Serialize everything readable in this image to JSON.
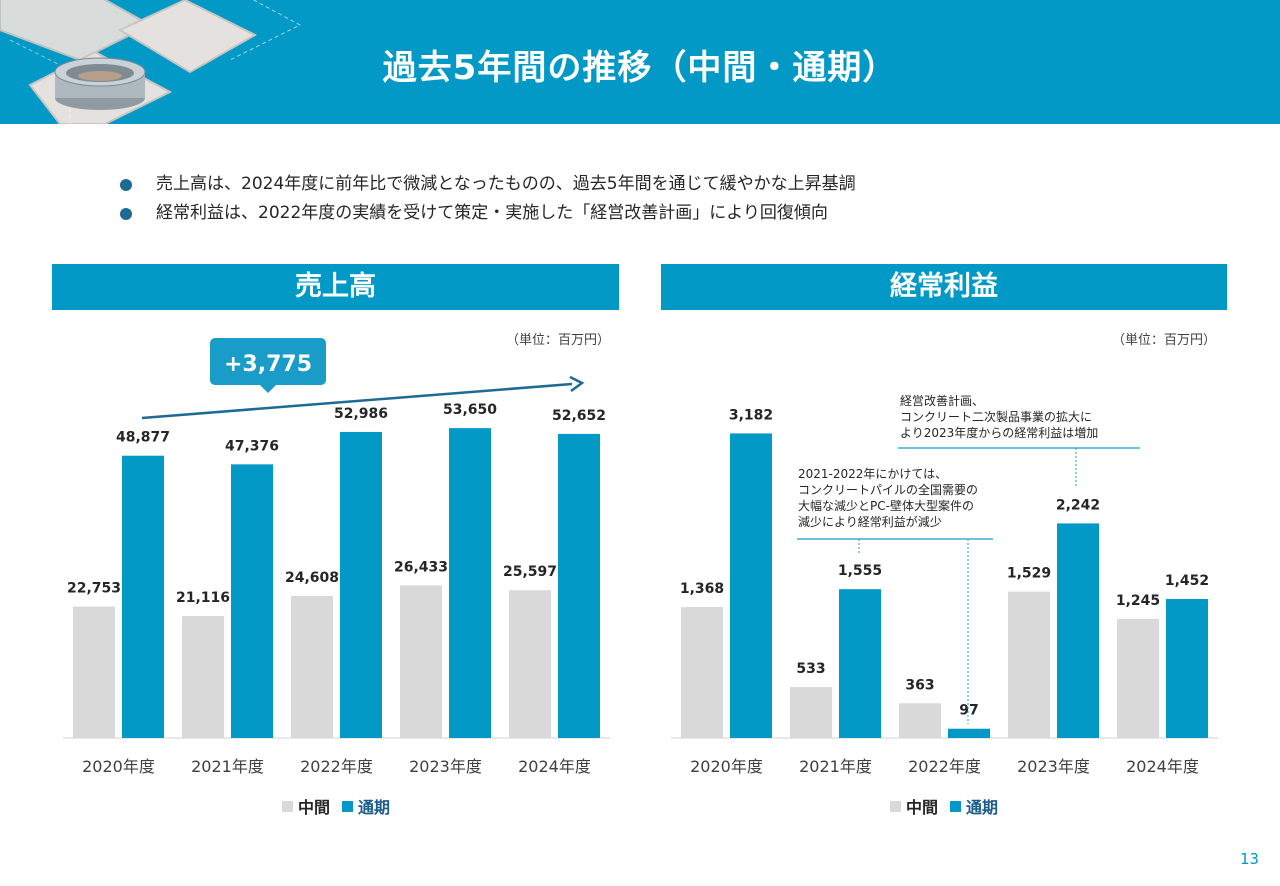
{
  "page": {
    "title": "過去5年間の推移（中間・通期）",
    "bullets": [
      "売上高は、2024年度に前年比で微減となったものの、過去5年間を通じて緩やかな上昇基調",
      "経常利益は、2022年度の実績を受けて策定・実施した「経営改善計画」により回復傾向"
    ],
    "page_number": "13",
    "unit_label": "（単位：百万円）",
    "legend": {
      "interim": "中間",
      "full": "通期"
    },
    "colors": {
      "header": "#0299c6",
      "full_bar": "#0299c6",
      "interim_bar": "#d9d9d9",
      "bullet": "#1d6b94",
      "callout": "#1a9cc8",
      "trend_arrow": "#1d6b94"
    }
  },
  "chart_data": [
    {
      "type": "bar",
      "title": "売上高",
      "unit": "（単位：百万円）",
      "categories": [
        "2020年度",
        "2021年度",
        "2022年度",
        "2023年度",
        "2024年度"
      ],
      "series": [
        {
          "name": "中間",
          "values": [
            22753,
            21116,
            24608,
            26433,
            25597
          ]
        },
        {
          "name": "通期",
          "values": [
            48877,
            47376,
            52986,
            53650,
            52652
          ]
        }
      ],
      "value_labels": {
        "中間": [
          "22,753",
          "21,116",
          "24,608",
          "26,433",
          "25,597"
        ],
        "通期": [
          "48,877",
          "47,376",
          "52,986",
          "53,650",
          "52,652"
        ]
      },
      "ylim": [
        0,
        58000
      ],
      "grid": false,
      "legend_position": "bottom",
      "annotations": [
        {
          "type": "trend-arrow",
          "text": "+3,775"
        }
      ]
    },
    {
      "type": "bar",
      "title": "経常利益",
      "unit": "（単位：百万円）",
      "categories": [
        "2020年度",
        "2021年度",
        "2022年度",
        "2023年度",
        "2024年度"
      ],
      "series": [
        {
          "name": "中間",
          "values": [
            1368,
            533,
            363,
            1529,
            1245
          ]
        },
        {
          "name": "通期",
          "values": [
            3182,
            1555,
            97,
            2242,
            1452
          ]
        }
      ],
      "value_labels": {
        "中間": [
          "1,368",
          "533",
          "363",
          "1,529",
          "1,245"
        ],
        "通期": [
          "3,182",
          "1,555",
          "97",
          "2,242",
          "1,452"
        ]
      },
      "ylim": [
        0,
        3500
      ],
      "grid": false,
      "legend_position": "bottom",
      "annotations": [
        {
          "type": "note",
          "text": "2021-2022年にかけては、\nコンクリートパイルの全国需要の\n大幅な減少とPC-壁体大型案件の\n減少により経常利益が減少"
        },
        {
          "type": "note",
          "text": "経営改善計画、\nコンクリート二次製品事業の拡大に\nより2023年度からの経常利益は増加"
        }
      ]
    }
  ]
}
